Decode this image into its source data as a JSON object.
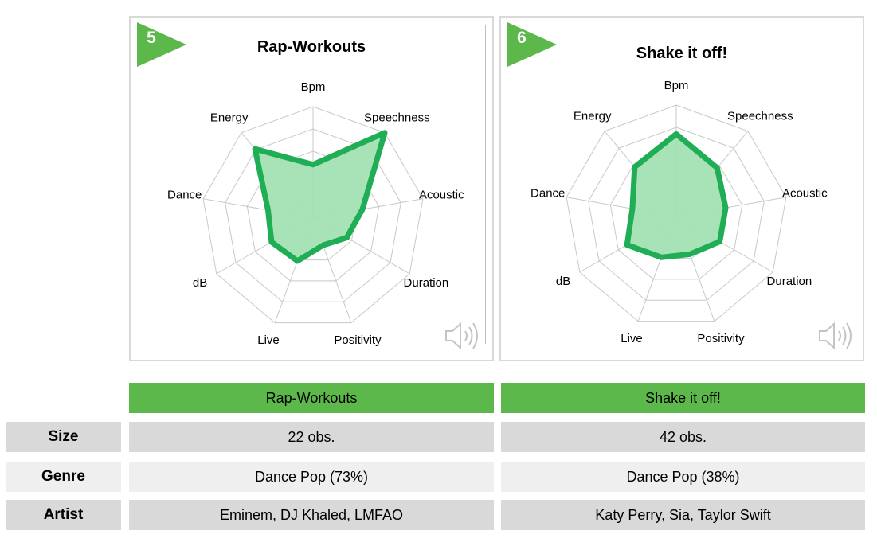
{
  "chart_data": [
    {
      "type": "radar",
      "number": "5",
      "title": "Rap-Workouts",
      "axes": [
        "Bpm",
        "Speechness",
        "Acoustic",
        "Duration",
        "Positivity",
        "Live",
        "dB",
        "Dance",
        "Energy"
      ],
      "values": [
        0.48,
        1.0,
        0.45,
        0.35,
        0.26,
        0.41,
        0.43,
        0.41,
        0.81
      ],
      "rlim": [
        0,
        1
      ],
      "rings": 5,
      "grid": true
    },
    {
      "type": "radar",
      "number": "6",
      "title": "Shake it off!",
      "axes": [
        "Bpm",
        "Speechness",
        "Acoustic",
        "Duration",
        "Positivity",
        "Live",
        "dB",
        "Dance",
        "Energy"
      ],
      "values": [
        0.74,
        0.57,
        0.45,
        0.45,
        0.36,
        0.39,
        0.51,
        0.4,
        0.58
      ],
      "rlim": [
        0,
        1
      ],
      "rings": 5,
      "grid": true
    }
  ],
  "colors": {
    "accent": "#5cb84a",
    "series_line": "#1fad55",
    "series_fill": "#a3e0b3",
    "grid": "#c8c8c8",
    "row_dark": "#d9d9d9",
    "row_light": "#efefef"
  },
  "icons": {
    "badge": "green-arrow-badge",
    "sound": "speaker-icon"
  },
  "table": {
    "headers": [
      "Rap-Workouts",
      "Shake it off!"
    ],
    "rows": [
      {
        "label": "Size",
        "values": [
          "22 obs.",
          "42 obs."
        ]
      },
      {
        "label": "Genre",
        "values": [
          "Dance Pop (73%)",
          "Dance Pop (38%)"
        ]
      },
      {
        "label": "Artist",
        "values": [
          "Eminem, DJ Khaled, LMFAO",
          "Katy Perry, Sia, Taylor Swift"
        ]
      }
    ]
  }
}
